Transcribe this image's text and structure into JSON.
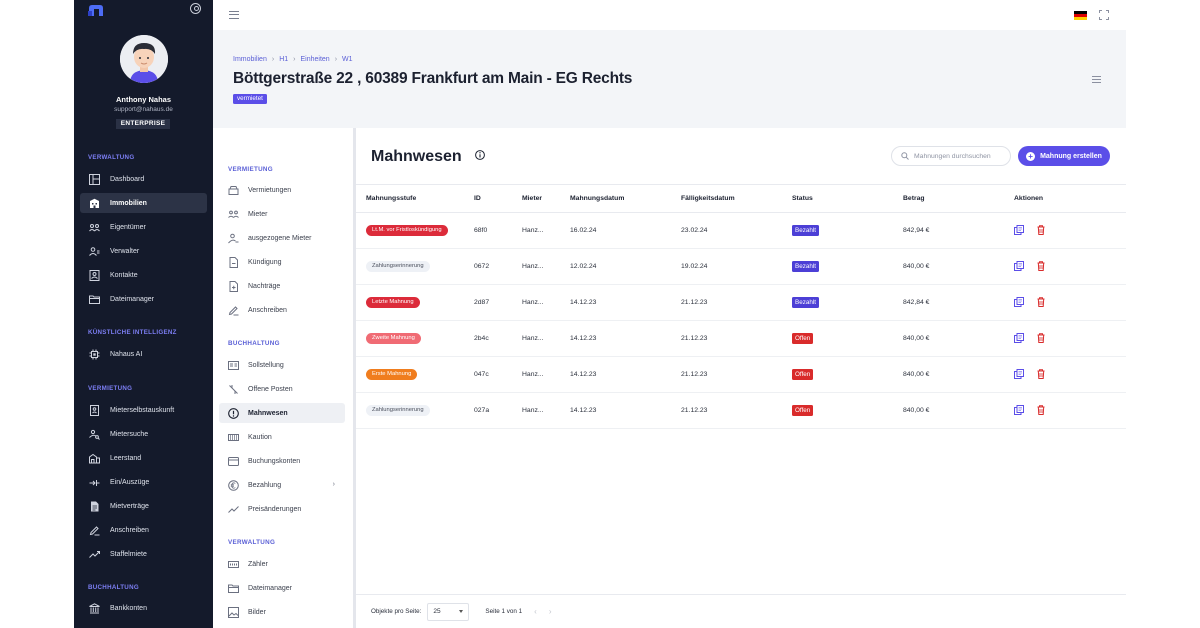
{
  "sidebar": {
    "user": {
      "name": "Anthony Nahas",
      "email": "support@nahaus.de",
      "plan": "ENTERPRISE"
    },
    "sections": [
      {
        "title": "VERWALTUNG",
        "items": [
          {
            "label": "Dashboard",
            "icon": "dashboard-icon"
          },
          {
            "label": "Immobilien",
            "icon": "building-icon",
            "active": true
          },
          {
            "label": "Eigentümer",
            "icon": "owners-icon"
          },
          {
            "label": "Verwalter",
            "icon": "managers-icon"
          },
          {
            "label": "Kontakte",
            "icon": "contacts-icon"
          },
          {
            "label": "Dateimanager",
            "icon": "folder-icon"
          }
        ]
      },
      {
        "title": "KÜNSTLICHE INTELLIGENZ",
        "items": [
          {
            "label": "Nahaus AI",
            "icon": "chip-icon"
          }
        ]
      },
      {
        "title": "VERMIETUNG",
        "items": [
          {
            "label": "Mieterselbstauskunft",
            "icon": "tenant-info-icon"
          },
          {
            "label": "Mietersuche",
            "icon": "tenant-search-icon"
          },
          {
            "label": "Leerstand",
            "icon": "vacancy-icon"
          },
          {
            "label": "Ein/Auszüge",
            "icon": "move-icon"
          },
          {
            "label": "Mietverträge",
            "icon": "contract-icon"
          },
          {
            "label": "Anschreiben",
            "icon": "pen-icon"
          },
          {
            "label": "Staffelmiete",
            "icon": "trend-icon"
          }
        ]
      },
      {
        "title": "BUCHHALTUNG",
        "items": [
          {
            "label": "Bankkonten",
            "icon": "bank-icon"
          }
        ]
      }
    ]
  },
  "header": {
    "breadcrumb": [
      "Immobilien",
      "H1",
      "Einheiten",
      "W1"
    ],
    "title": "Böttgerstraße 22 , 60389 Frankfurt am Main - EG Rechts",
    "tag": "vermietet"
  },
  "subnav": {
    "sections": [
      {
        "title": "VERMIETUNG",
        "items": [
          {
            "label": "Vermietungen",
            "icon": "key-box-icon"
          },
          {
            "label": "Mieter",
            "icon": "people-icon"
          },
          {
            "label": "ausgezogene Mieter",
            "icon": "person-out-icon"
          },
          {
            "label": "Kündigung",
            "icon": "document-minus-icon"
          },
          {
            "label": "Nachträge",
            "icon": "document-plus-icon"
          },
          {
            "label": "Anschreiben",
            "icon": "pen-icon"
          }
        ]
      },
      {
        "title": "BUCHHALTUNG",
        "items": [
          {
            "label": "Sollstellung",
            "icon": "ledger-icon"
          },
          {
            "label": "Offene Posten",
            "icon": "open-items-icon"
          },
          {
            "label": "Mahnwesen",
            "icon": "alert-circle-icon",
            "active": true
          },
          {
            "label": "Kaution",
            "icon": "deposit-icon"
          },
          {
            "label": "Buchungskonten",
            "icon": "accounts-icon"
          },
          {
            "label": "Bezahlung",
            "icon": "euro-icon",
            "chevron": "›"
          },
          {
            "label": "Preisänderungen",
            "icon": "trend-icon"
          }
        ]
      },
      {
        "title": "VERWALTUNG",
        "items": [
          {
            "label": "Zähler",
            "icon": "meter-icon"
          },
          {
            "label": "Dateimanager",
            "icon": "folder-icon"
          },
          {
            "label": "Bilder",
            "icon": "image-icon"
          }
        ]
      }
    ]
  },
  "main": {
    "title": "Mahnwesen",
    "search_placeholder": "Mahnungen durchsuchen",
    "create_label": "Mahnung erstellen",
    "columns": [
      "Mahnungsstufe",
      "ID",
      "Mieter",
      "Mahnungsdatum",
      "Fälligkeitsdatum",
      "Status",
      "Betrag",
      "Aktionen"
    ],
    "rows": [
      {
        "level": "Lt.M. vor Fristloskündigung",
        "level_color": "#dc2b3a",
        "id": "68f0",
        "tenant": "Hanz...",
        "date": "16.02.24",
        "due": "23.02.24",
        "status": "Bezahlt",
        "status_color": "#4c3fd6",
        "amount": "842,94 €"
      },
      {
        "level": "Zahlungserinnerung",
        "level_color": "#eef1f6",
        "id": "0672",
        "tenant": "Hanz...",
        "date": "12.02.24",
        "due": "19.02.24",
        "status": "Bezahlt",
        "status_color": "#4c3fd6",
        "amount": "840,00 €"
      },
      {
        "level": "Letzte Mahnung",
        "level_color": "#dc2b3a",
        "id": "2d87",
        "tenant": "Hanz...",
        "date": "14.12.23",
        "due": "21.12.23",
        "status": "Bezahlt",
        "status_color": "#4c3fd6",
        "amount": "842,84 €"
      },
      {
        "level": "Zweite Mahnung",
        "level_color": "#f06b74",
        "id": "2b4c",
        "tenant": "Hanz...",
        "date": "14.12.23",
        "due": "21.12.23",
        "status": "Offen",
        "status_color": "#d92b2b",
        "amount": "840,00 €"
      },
      {
        "level": "Erste Mahnung",
        "level_color": "#f07d1e",
        "id": "047c",
        "tenant": "Hanz...",
        "date": "14.12.23",
        "due": "21.12.23",
        "status": "Offen",
        "status_color": "#d92b2b",
        "amount": "840,00 €"
      },
      {
        "level": "Zahlungserinnerung",
        "level_color": "#eef1f6",
        "id": "027a",
        "tenant": "Hanz...",
        "date": "14.12.23",
        "due": "21.12.23",
        "status": "Offen",
        "status_color": "#d92b2b",
        "amount": "840,00 €"
      }
    ],
    "footer": {
      "per_page_label": "Objekte pro Seite:",
      "per_page": "25",
      "page_info": "Seite 1 von 1",
      "prev": "‹",
      "next": "›"
    }
  }
}
